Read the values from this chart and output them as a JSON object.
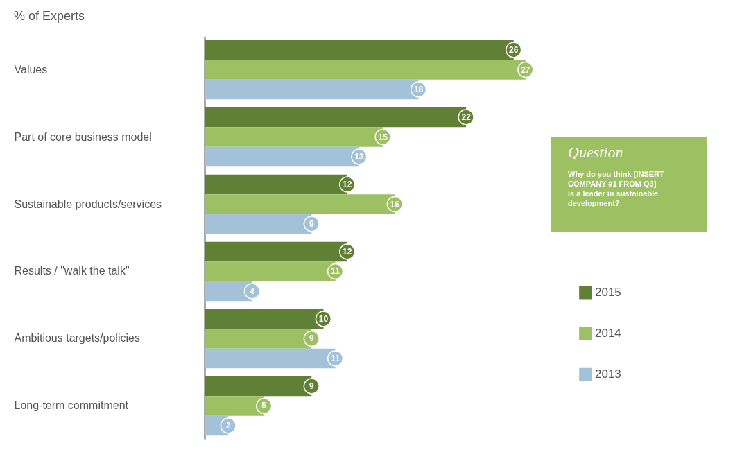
{
  "chart_data": {
    "type": "bar",
    "orientation": "horizontal",
    "title": "% of Experts",
    "categories": [
      "Values",
      "Part of core business model",
      "Sustainable products/services",
      "Results / \"walk the talk\"",
      "Ambitious targets/policies",
      "Long-term commitment"
    ],
    "series": [
      {
        "name": "2015",
        "color": "#5f8035",
        "values": [
          26,
          22,
          12,
          12,
          10,
          9
        ]
      },
      {
        "name": "2014",
        "color": "#9dc063",
        "values": [
          27,
          15,
          16,
          11,
          9,
          5
        ]
      },
      {
        "name": "2013",
        "color": "#a4c1da",
        "values": [
          18,
          13,
          9,
          4,
          11,
          2
        ]
      }
    ],
    "data_labels": true,
    "legend": "right",
    "grid": false,
    "annotations": [
      "Question",
      "Why do you think [INSERT\nCOMPANY #1 FROM Q3]\nis a leader in sustainable\ndevelopment?"
    ]
  }
}
